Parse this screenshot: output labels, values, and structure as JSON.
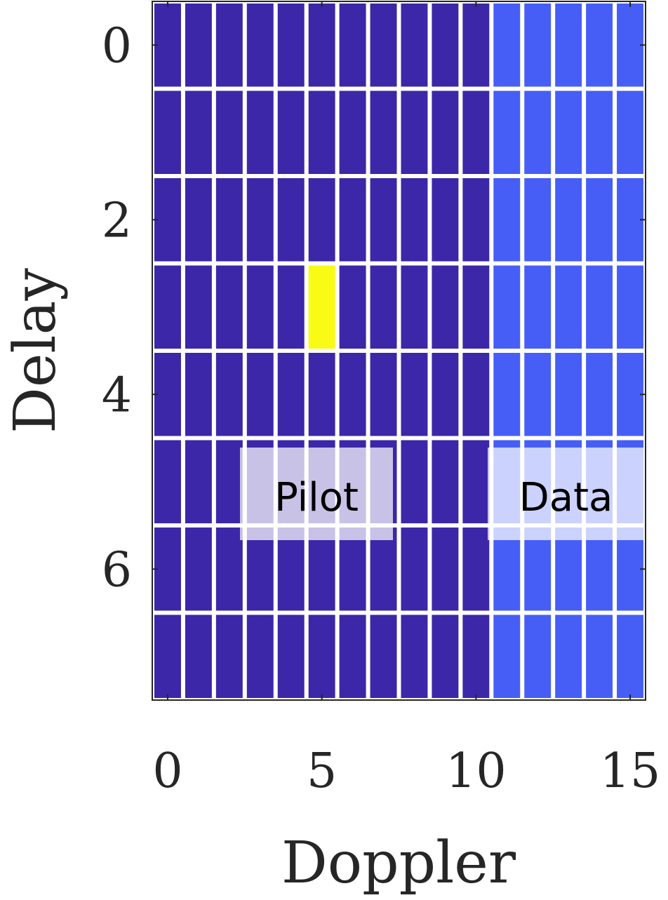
{
  "chart_data": {
    "type": "heatmap",
    "xlabel": "Doppler",
    "ylabel": "Delay",
    "xlim": [
      -0.5,
      15.5
    ],
    "ylim": [
      -0.5,
      7.5
    ],
    "y_reversed": true,
    "xticks": [
      0,
      5,
      10,
      15
    ],
    "yticks": [
      0,
      2,
      4,
      6
    ],
    "colors": [
      "#3b27a8",
      "#465ef6",
      "#f9fb15"
    ],
    "values": [
      [
        0,
        0,
        0,
        0,
        0,
        0,
        0,
        0,
        0,
        0,
        0,
        1,
        1,
        1,
        1,
        1
      ],
      [
        0,
        0,
        0,
        0,
        0,
        0,
        0,
        0,
        0,
        0,
        0,
        1,
        1,
        1,
        1,
        1
      ],
      [
        0,
        0,
        0,
        0,
        0,
        0,
        0,
        0,
        0,
        0,
        0,
        1,
        1,
        1,
        1,
        1
      ],
      [
        0,
        0,
        0,
        0,
        0,
        2,
        0,
        0,
        0,
        0,
        0,
        1,
        1,
        1,
        1,
        1
      ],
      [
        0,
        0,
        0,
        0,
        0,
        0,
        0,
        0,
        0,
        0,
        0,
        1,
        1,
        1,
        1,
        1
      ],
      [
        0,
        0,
        0,
        0,
        0,
        0,
        0,
        0,
        0,
        0,
        0,
        1,
        1,
        1,
        1,
        1
      ],
      [
        0,
        0,
        0,
        0,
        0,
        0,
        0,
        0,
        0,
        0,
        0,
        1,
        1,
        1,
        1,
        1
      ],
      [
        0,
        0,
        0,
        0,
        0,
        0,
        0,
        0,
        0,
        0,
        0,
        1,
        1,
        1,
        1,
        1
      ]
    ],
    "annotations": [
      {
        "text": "Pilot"
      },
      {
        "text": "Data"
      }
    ]
  }
}
